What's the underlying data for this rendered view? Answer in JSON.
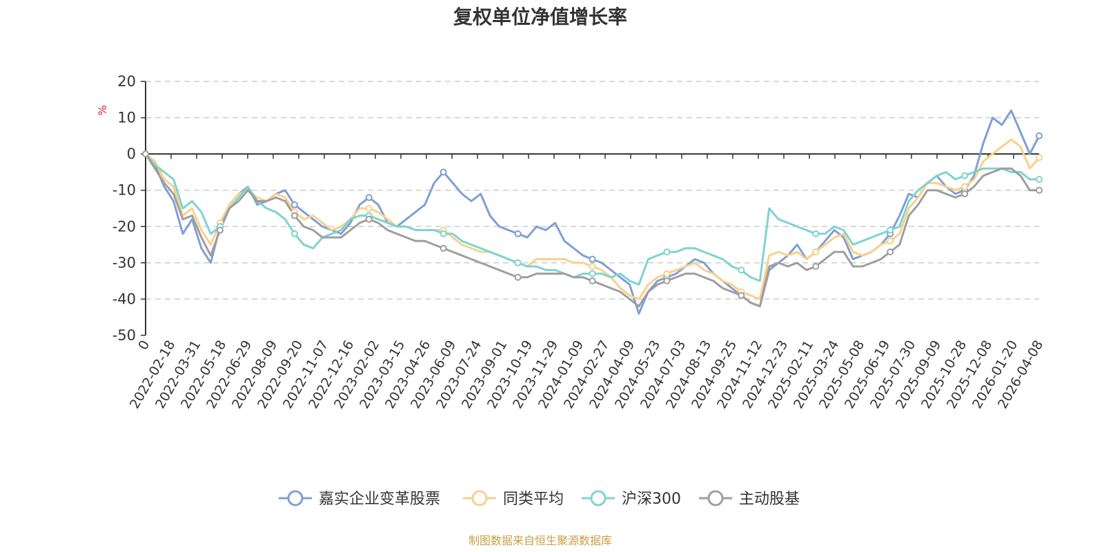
{
  "chart_data": {
    "type": "line",
    "title": "复权单位净值增长率",
    "ylabel": "%",
    "ylim": [
      -50,
      20
    ],
    "yticks": [
      20,
      10,
      0,
      -10,
      -20,
      -30,
      -40,
      -50
    ],
    "grid": true,
    "legend_position": "bottom",
    "source": "制图数据来自恒生聚源数据库",
    "x_tick_labels": [
      "0",
      "2022-02-18",
      "2022-03-31",
      "2022-05-18",
      "2022-06-29",
      "2022-08-09",
      "2022-09-20",
      "2022-11-07",
      "2022-12-16",
      "2023-02-02",
      "2023-03-15",
      "2023-04-26",
      "2023-06-09",
      "2023-07-24",
      "2023-09-01",
      "2023-10-19",
      "2023-11-29",
      "2024-01-09",
      "2024-02-27",
      "2024-04-09",
      "2024-05-23",
      "2024-07-03",
      "2024-08-13",
      "2024-09-25",
      "2024-11-12",
      "2024-12-23",
      "2025-02-11",
      "2025-03-24",
      "2025-05-08",
      "2025-06-19",
      "2025-07-30",
      "2025-09-09",
      "2025-10-28",
      "2025-12-08",
      "2026-01-20",
      "2026-04-08"
    ],
    "series": [
      {
        "name": "嘉实企业变革股票",
        "color": "#7f9fd4",
        "values": [
          0,
          -3,
          -9,
          -13,
          -22,
          -18,
          -26,
          -30,
          -20,
          -14,
          -11,
          -9,
          -14,
          -13,
          -11,
          -10,
          -14,
          -16,
          -18,
          -20,
          -21,
          -22,
          -19,
          -14,
          -12,
          -14,
          -19,
          -20,
          -18,
          -16,
          -14,
          -8,
          -5,
          -8,
          -11,
          -13,
          -11,
          -17,
          -20,
          -21,
          -22,
          -23,
          -20,
          -21,
          -19,
          -24,
          -26,
          -28,
          -29,
          -30,
          -32,
          -34,
          -36,
          -44,
          -38,
          -35,
          -34,
          -33,
          -31,
          -29,
          -30,
          -33,
          -35,
          -37,
          -39,
          -41,
          -42,
          -32,
          -30,
          -28,
          -25,
          -29,
          -27,
          -24,
          -21,
          -23,
          -29,
          -28,
          -27,
          -25,
          -22,
          -17,
          -11,
          -12,
          -8,
          -6,
          -9,
          -11,
          -10,
          -6,
          3,
          10,
          8,
          12,
          6,
          0,
          5
        ]
      },
      {
        "name": "同类平均",
        "color": "#fad08a",
        "values": [
          0,
          -2,
          -7,
          -9,
          -17,
          -15,
          -21,
          -25,
          -19,
          -14,
          -11,
          -10,
          -12,
          -13,
          -11,
          -12,
          -16,
          -18,
          -17,
          -19,
          -21,
          -20,
          -18,
          -15,
          -15,
          -16,
          -18,
          -20,
          -20,
          -21,
          -21,
          -21,
          -21,
          -23,
          -25,
          -26,
          -27,
          -27,
          -28,
          -29,
          -30,
          -31,
          -29,
          -29,
          -29,
          -29,
          -30,
          -30,
          -31,
          -32,
          -34,
          -37,
          -39,
          -40,
          -36,
          -34,
          -33,
          -32,
          -31,
          -30,
          -32,
          -33,
          -35,
          -36,
          -38,
          -39,
          -40,
          -28,
          -27,
          -28,
          -27,
          -29,
          -27,
          -25,
          -23,
          -22,
          -27,
          -28,
          -27,
          -25,
          -24,
          -22,
          -15,
          -12,
          -8,
          -8,
          -9,
          -10,
          -9,
          -7,
          -2,
          0,
          2,
          4,
          2,
          -4,
          -1
        ]
      },
      {
        "name": "沪深300",
        "color": "#7ed3d1",
        "values": [
          0,
          -3,
          -5,
          -7,
          -15,
          -13,
          -16,
          -22,
          -20,
          -15,
          -12,
          -9,
          -13,
          -15,
          -16,
          -18,
          -22,
          -25,
          -26,
          -23,
          -22,
          -21,
          -18,
          -17,
          -17,
          -18,
          -19,
          -20,
          -20,
          -21,
          -21,
          -21,
          -22,
          -22,
          -24,
          -25,
          -26,
          -27,
          -28,
          -29,
          -30,
          -31,
          -31,
          -32,
          -32,
          -33,
          -34,
          -33,
          -33,
          -33,
          -34,
          -33,
          -35,
          -36,
          -29,
          -28,
          -27,
          -27,
          -26,
          -26,
          -27,
          -28,
          -29,
          -31,
          -32,
          -34,
          -35,
          -15,
          -18,
          -19,
          -20,
          -21,
          -22,
          -22,
          -20,
          -21,
          -25,
          -24,
          -23,
          -22,
          -21,
          -20,
          -13,
          -10,
          -8,
          -6,
          -5,
          -7,
          -6,
          -5,
          -4,
          -4,
          -4,
          -5,
          -5,
          -7,
          -7
        ]
      },
      {
        "name": "主动股基",
        "color": "#9e9e9e",
        "values": [
          0,
          -4,
          -8,
          -11,
          -18,
          -17,
          -23,
          -28,
          -21,
          -15,
          -13,
          -10,
          -13,
          -13,
          -12,
          -13,
          -17,
          -20,
          -21,
          -23,
          -23,
          -23,
          -21,
          -19,
          -18,
          -19,
          -21,
          -22,
          -23,
          -24,
          -24,
          -25,
          -26,
          -27,
          -28,
          -29,
          -30,
          -31,
          -32,
          -33,
          -34,
          -34,
          -33,
          -33,
          -33,
          -33,
          -34,
          -34,
          -35,
          -36,
          -37,
          -38,
          -40,
          -42,
          -38,
          -36,
          -35,
          -34,
          -33,
          -33,
          -34,
          -35,
          -37,
          -38,
          -39,
          -41,
          -42,
          -31,
          -30,
          -31,
          -30,
          -32,
          -31,
          -29,
          -27,
          -27,
          -31,
          -31,
          -30,
          -29,
          -27,
          -25,
          -17,
          -14,
          -10,
          -10,
          -11,
          -12,
          -11,
          -9,
          -6,
          -5,
          -4,
          -4,
          -6,
          -10,
          -10
        ]
      }
    ]
  }
}
